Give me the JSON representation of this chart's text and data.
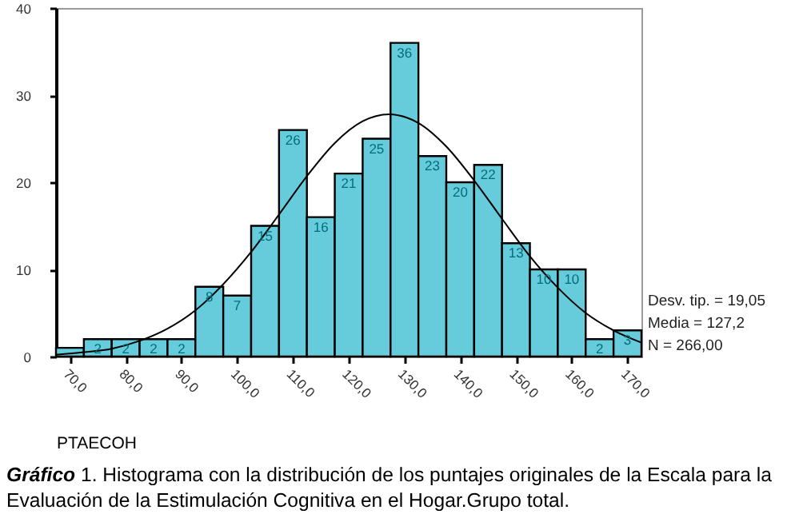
{
  "chart_data": {
    "type": "histogram",
    "xlabel": "PTAECOH",
    "bins": [
      67.5,
      72.5,
      77.5,
      82.5,
      87.5,
      92.5,
      97.5,
      102.5,
      107.5,
      112.5,
      117.5,
      122.5,
      127.5,
      132.5,
      137.5,
      142.5,
      147.5,
      152.5,
      157.5,
      162.5,
      167.5,
      172.5
    ],
    "series": [
      {
        "color": "#66cbdb",
        "values": [
          1,
          2,
          2,
          2,
          2,
          8,
          7,
          15,
          26,
          16,
          21,
          25,
          36,
          23,
          20,
          22,
          13,
          10,
          10,
          2,
          3
        ],
        "value_labels": [
          null,
          "2",
          "2",
          "2",
          "2",
          "8",
          "7",
          "15",
          "26",
          "16",
          "21",
          "25",
          "36",
          "23",
          "20",
          "22",
          "13",
          "10",
          "10",
          "2",
          "3"
        ]
      },
      {
        "type": "line",
        "color": "#000000",
        "x": [
          67.5,
          72.5,
          77.5,
          82.5,
          87.5,
          92.5,
          97.5,
          102.5,
          107.5,
          112.5,
          117.5,
          122.5,
          127.2,
          132.5,
          137.5,
          142.5,
          147.5,
          152.5,
          157.5,
          162.5,
          167.5,
          172.5
        ],
        "values": [
          0.2,
          0.5,
          0.9,
          1.8,
          3.2,
          5.3,
          8.3,
          12,
          16.3,
          20.7,
          24.5,
          27,
          27.8,
          26.8,
          24.1,
          20.2,
          15.8,
          11.5,
          7.9,
          5,
          3,
          1.6
        ]
      }
    ],
    "xlim": [
      67.5,
      172.5
    ],
    "xticks": [
      {
        "value": 70,
        "label": "70,0"
      },
      {
        "value": 80,
        "label": "80,0"
      },
      {
        "value": 90,
        "label": "90,0"
      },
      {
        "value": 100,
        "label": "100,0"
      },
      {
        "value": 110,
        "label": "110,0"
      },
      {
        "value": 120,
        "label": "120,0"
      },
      {
        "value": 130,
        "label": "130,0"
      },
      {
        "value": 140,
        "label": "140,0"
      },
      {
        "value": 150,
        "label": "150,0"
      },
      {
        "value": 160,
        "label": "160,0"
      },
      {
        "value": 170,
        "label": "170,0"
      }
    ],
    "ylim": [
      0,
      40
    ],
    "yticks": [
      0,
      10,
      20,
      30,
      40
    ],
    "grid": false,
    "legend": false,
    "annotations": [
      "Desv. tip. = 19,05",
      "Media = 127,2",
      "N = 266,00",
      "Gráfico 1. Histograma con la distribución de los puntajes originales de la Escala para la Evaluación de la Estimulación Cognitiva en el Hogar.Grupo total."
    ]
  }
}
